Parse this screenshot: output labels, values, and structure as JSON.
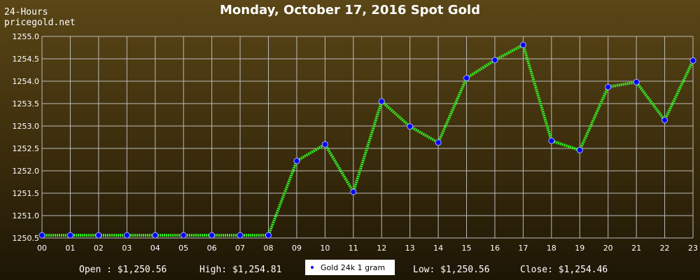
{
  "corner": {
    "line1": "24-Hours",
    "line2": "pricegold.net"
  },
  "title": "Monday, October 17, 2016 Spot Gold",
  "footer": {
    "open": "Open : $1,250.56",
    "high": "High: $1,254.81",
    "low": "Low: $1,250.56",
    "close": "Close: $1,254.46"
  },
  "legend": {
    "label": "Gold 24k 1 gram"
  },
  "colors": {
    "line": "#33ee22",
    "marker": "#0000ff",
    "grid": "#bbbbbb"
  },
  "chart_data": {
    "type": "line",
    "title": "Monday, October 17, 2016 Spot Gold",
    "xlabel": "",
    "ylabel": "",
    "x": [
      "00",
      "01",
      "02",
      "03",
      "04",
      "05",
      "06",
      "07",
      "08",
      "09",
      "10",
      "11",
      "12",
      "13",
      "14",
      "15",
      "16",
      "17",
      "18",
      "19",
      "20",
      "21",
      "22",
      "23"
    ],
    "y_ticks": [
      "1250.5",
      "1251.0",
      "1251.5",
      "1252.0",
      "1252.5",
      "1253.0",
      "1253.5",
      "1254.0",
      "1254.5",
      "1255.0"
    ],
    "ylim": [
      1250.5,
      1255.0
    ],
    "grid": true,
    "series": [
      {
        "name": "Gold 24k 1 gram",
        "values": [
          1250.56,
          1250.56,
          1250.56,
          1250.56,
          1250.56,
          1250.56,
          1250.56,
          1250.56,
          1250.56,
          1252.22,
          1252.59,
          1251.53,
          1253.55,
          1252.99,
          1252.63,
          1254.07,
          1254.47,
          1254.81,
          1252.67,
          1252.46,
          1253.87,
          1253.98,
          1253.13,
          1254.46
        ]
      }
    ]
  }
}
